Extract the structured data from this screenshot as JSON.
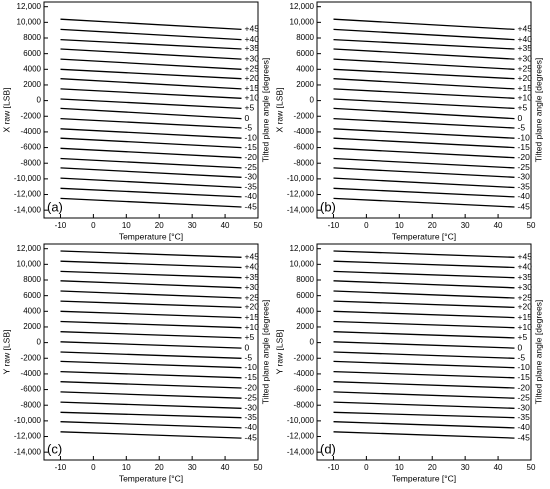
{
  "chart_data": [
    {
      "type": "line",
      "panel_label": "(a)",
      "x_label": "Temperature [°C]",
      "y_label": "X raw [LSB]",
      "right_label": "Tilted plane angle [degrees]",
      "color": "#000000",
      "xlim": [
        -15,
        50
      ],
      "xticks": [
        -10,
        0,
        10,
        20,
        30,
        40,
        50
      ],
      "ylim": [
        -15000,
        12600
      ],
      "yticks": [
        {
          "value": 12000,
          "label": "12,000"
        },
        {
          "value": 10000,
          "label": "10,000"
        },
        8000,
        6000,
        4000,
        2000,
        0,
        -2000,
        -4000,
        -6000,
        -8000,
        {
          "value": -10000,
          "label": "-10,000"
        },
        {
          "value": -12000,
          "label": "-12,000"
        },
        {
          "value": -14000,
          "label": "-14,000"
        }
      ],
      "x": [
        -10,
        45
      ],
      "series": [
        {
          "name": "+45",
          "values": [
            10400,
            9100
          ]
        },
        {
          "name": "+40",
          "values": [
            9100,
            7800
          ]
        },
        {
          "name": "+35",
          "values": [
            7800,
            6600
          ]
        },
        {
          "name": "+30",
          "values": [
            6600,
            5300
          ]
        },
        {
          "name": "+25",
          "values": [
            5300,
            4000
          ]
        },
        {
          "name": "+20",
          "values": [
            4000,
            2800
          ]
        },
        {
          "name": "+15",
          "values": [
            2800,
            1500
          ]
        },
        {
          "name": "+10",
          "values": [
            1500,
            300
          ]
        },
        {
          "name": "+5",
          "values": [
            200,
            -1000
          ]
        },
        {
          "name": "0",
          "values": [
            -1000,
            -2300
          ]
        },
        {
          "name": "-5",
          "values": [
            -2300,
            -3500
          ]
        },
        {
          "name": "-10",
          "values": [
            -3600,
            -4800
          ]
        },
        {
          "name": "-15",
          "values": [
            -4800,
            -6000
          ]
        },
        {
          "name": "-20",
          "values": [
            -6100,
            -7300
          ]
        },
        {
          "name": "-25",
          "values": [
            -7400,
            -8600
          ]
        },
        {
          "name": "-30",
          "values": [
            -8600,
            -9800
          ]
        },
        {
          "name": "-35",
          "values": [
            -9900,
            -11100
          ]
        },
        {
          "name": "-40",
          "values": [
            -11200,
            -12300
          ]
        },
        {
          "name": "-45",
          "values": [
            -12500,
            -13600
          ]
        }
      ]
    },
    {
      "type": "line",
      "panel_label": "(b)",
      "x_label": "Temperature [°C]",
      "y_label": "X raw [LSB]",
      "right_label": "Tilted plane angle [degrees]",
      "color": "#000000",
      "xlim": [
        -15,
        50
      ],
      "xticks": [
        -10,
        0,
        10,
        20,
        30,
        40,
        50
      ],
      "ylim": [
        -15000,
        12600
      ],
      "yticks": [
        {
          "value": 12000,
          "label": "12,000"
        },
        {
          "value": 10000,
          "label": "10,000"
        },
        8000,
        6000,
        4000,
        2000,
        0,
        -2000,
        -4000,
        -6000,
        -8000,
        {
          "value": -10000,
          "label": "-10,000"
        },
        {
          "value": -12000,
          "label": "-12,000"
        },
        {
          "value": -14000,
          "label": "-14,000"
        }
      ],
      "x": [
        -10,
        45
      ],
      "series": [
        {
          "name": "+45",
          "values": [
            10400,
            9100
          ]
        },
        {
          "name": "+40",
          "values": [
            9100,
            7800
          ]
        },
        {
          "name": "+35",
          "values": [
            7800,
            6600
          ]
        },
        {
          "name": "+30",
          "values": [
            6600,
            5300
          ]
        },
        {
          "name": "+25",
          "values": [
            5300,
            4000
          ]
        },
        {
          "name": "+20",
          "values": [
            4000,
            2800
          ]
        },
        {
          "name": "+15",
          "values": [
            2800,
            1500
          ]
        },
        {
          "name": "+10",
          "values": [
            1500,
            300
          ]
        },
        {
          "name": "+5",
          "values": [
            200,
            -1000
          ]
        },
        {
          "name": "0",
          "values": [
            -1000,
            -2300
          ]
        },
        {
          "name": "-5",
          "values": [
            -2300,
            -3500
          ]
        },
        {
          "name": "-10",
          "values": [
            -3600,
            -4800
          ]
        },
        {
          "name": "-15",
          "values": [
            -4800,
            -6000
          ]
        },
        {
          "name": "-20",
          "values": [
            -6100,
            -7300
          ]
        },
        {
          "name": "-25",
          "values": [
            -7400,
            -8600
          ]
        },
        {
          "name": "-30",
          "values": [
            -8600,
            -9800
          ]
        },
        {
          "name": "-35",
          "values": [
            -9900,
            -11100
          ]
        },
        {
          "name": "-40",
          "values": [
            -11200,
            -12300
          ]
        },
        {
          "name": "-45",
          "values": [
            -12500,
            -13600
          ]
        }
      ]
    },
    {
      "type": "line",
      "panel_label": "(c)",
      "x_label": "Temperature [°C]",
      "y_label": "Y raw [LSB]",
      "right_label": "Tilted plane angle [degrees]",
      "color": "#000000",
      "xlim": [
        -15,
        50
      ],
      "xticks": [
        -10,
        0,
        10,
        20,
        30,
        40,
        50
      ],
      "ylim": [
        -15000,
        12600
      ],
      "yticks": [
        {
          "value": 12000,
          "label": "12,000"
        },
        {
          "value": 10000,
          "label": "10,000"
        },
        8000,
        6000,
        4000,
        2000,
        0,
        -2000,
        -4000,
        -6000,
        -8000,
        {
          "value": -10000,
          "label": "-10,000"
        },
        {
          "value": -12000,
          "label": "-12,000"
        },
        {
          "value": -14000,
          "label": "-14,000"
        }
      ],
      "x": [
        -10,
        45
      ],
      "series": [
        {
          "name": "+45",
          "values": [
            11700,
            10900
          ]
        },
        {
          "name": "+40",
          "values": [
            10400,
            9600
          ]
        },
        {
          "name": "+35",
          "values": [
            9100,
            8300
          ]
        },
        {
          "name": "+30",
          "values": [
            7900,
            7000
          ]
        },
        {
          "name": "+25",
          "values": [
            6600,
            5700
          ]
        },
        {
          "name": "+20",
          "values": [
            5300,
            4500
          ]
        },
        {
          "name": "+15",
          "values": [
            4000,
            3200
          ]
        },
        {
          "name": "+10",
          "values": [
            2700,
            1900
          ]
        },
        {
          "name": "+5",
          "values": [
            1400,
            600
          ]
        },
        {
          "name": "0",
          "values": [
            100,
            -700
          ]
        },
        {
          "name": "-5",
          "values": [
            -1200,
            -2000
          ]
        },
        {
          "name": "-10",
          "values": [
            -2400,
            -3200
          ]
        },
        {
          "name": "-15",
          "values": [
            -3700,
            -4500
          ]
        },
        {
          "name": "-20",
          "values": [
            -5000,
            -5800
          ]
        },
        {
          "name": "-25",
          "values": [
            -6300,
            -7100
          ]
        },
        {
          "name": "-30",
          "values": [
            -7600,
            -8400
          ]
        },
        {
          "name": "-35",
          "values": [
            -8900,
            -9600
          ]
        },
        {
          "name": "-40",
          "values": [
            -10100,
            -10900
          ]
        },
        {
          "name": "-45",
          "values": [
            -11400,
            -12200
          ]
        }
      ]
    },
    {
      "type": "line",
      "panel_label": "(d)",
      "x_label": "Temperature [°C]",
      "y_label": "Y raw [LSB]",
      "right_label": "Tilted plane angle [degrees]",
      "color": "#000000",
      "xlim": [
        -15,
        50
      ],
      "xticks": [
        -10,
        0,
        10,
        20,
        30,
        40,
        50
      ],
      "ylim": [
        -15000,
        12600
      ],
      "yticks": [
        {
          "value": 12000,
          "label": "12,000"
        },
        {
          "value": 10000,
          "label": "10,000"
        },
        8000,
        6000,
        4000,
        2000,
        0,
        -2000,
        -4000,
        -6000,
        -8000,
        {
          "value": -10000,
          "label": "-10,000"
        },
        {
          "value": -12000,
          "label": "-12,000"
        },
        {
          "value": -14000,
          "label": "-14,000"
        }
      ],
      "x": [
        -10,
        45
      ],
      "series": [
        {
          "name": "+45",
          "values": [
            11700,
            10900
          ]
        },
        {
          "name": "+40",
          "values": [
            10400,
            9600
          ]
        },
        {
          "name": "+35",
          "values": [
            9100,
            8300
          ]
        },
        {
          "name": "+30",
          "values": [
            7900,
            7000
          ]
        },
        {
          "name": "+25",
          "values": [
            6600,
            5700
          ]
        },
        {
          "name": "+20",
          "values": [
            5300,
            4500
          ]
        },
        {
          "name": "+15",
          "values": [
            4000,
            3200
          ]
        },
        {
          "name": "+10",
          "values": [
            2700,
            1900
          ]
        },
        {
          "name": "+5",
          "values": [
            1400,
            600
          ]
        },
        {
          "name": "0",
          "values": [
            100,
            -700
          ]
        },
        {
          "name": "-5",
          "values": [
            -1200,
            -2000
          ]
        },
        {
          "name": "-10",
          "values": [
            -2400,
            -3200
          ]
        },
        {
          "name": "-15",
          "values": [
            -3700,
            -4500
          ]
        },
        {
          "name": "-20",
          "values": [
            -5000,
            -5800
          ]
        },
        {
          "name": "-25",
          "values": [
            -6300,
            -7100
          ]
        },
        {
          "name": "-30",
          "values": [
            -7600,
            -8400
          ]
        },
        {
          "name": "-35",
          "values": [
            -8900,
            -9600
          ]
        },
        {
          "name": "-40",
          "values": [
            -10100,
            -10900
          ]
        },
        {
          "name": "-45",
          "values": [
            -11400,
            -12200
          ]
        }
      ]
    }
  ]
}
